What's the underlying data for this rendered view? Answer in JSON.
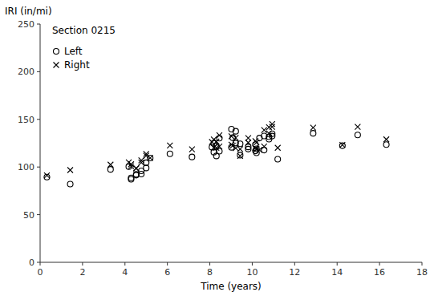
{
  "chart_data": {
    "type": "scatter",
    "title": "Section 0215",
    "x_label": "Time (years)",
    "y_label": "IRI (in/mi)",
    "x": [
      0.32,
      1.42,
      3.32,
      4.18,
      4.29,
      4.29,
      4.53,
      4.53,
      4.77,
      4.77,
      5.0,
      5.0,
      5.19,
      6.12,
      7.16,
      8.1,
      8.19,
      8.19,
      8.31,
      8.31,
      8.45,
      8.45,
      9.02,
      9.02,
      9.08,
      9.22,
      9.22,
      9.43,
      9.43,
      9.81,
      9.81,
      10.15,
      10.15,
      10.2,
      10.2,
      10.34,
      10.56,
      10.56,
      10.79,
      10.79,
      10.94,
      10.94,
      11.2,
      12.87,
      14.25,
      14.97,
      16.32
    ],
    "series": [
      {
        "name": "Left",
        "color": "#000000",
        "marker": "circle",
        "values": [
          89.49,
          82.06,
          97.5,
          100.33,
          88.65,
          87.11,
          92.31,
          91.47,
          95.95,
          92.58,
          104.52,
          98.97,
          109.43,
          113.82,
          110.55,
          120.84,
          124.87,
          115.61,
          121.85,
          111.61,
          130.21,
          116.62,
          139.68,
          120.66,
          130.76,
          137.48,
          125.11,
          124.43,
          112.46,
          121.07,
          118.81,
          123.55,
          116.92,
          119.05,
          114.87,
          130.38,
          132.62,
          117.75,
          131.68,
          129.27,
          134.87,
          132.48,
          108.11,
          135.38,
          122.38,
          133.68,
          123.57
        ]
      },
      {
        "name": "Right",
        "color": "#000000",
        "marker": "x",
        "values": [
          91.18,
          96.79,
          102.49,
          104.93,
          100.68,
          102.91,
          98.73,
          98.46,
          106.98,
          104.74,
          113.7,
          111.82,
          109.57,
          122.53,
          118.56,
          126.26,
          128.81,
          120.32,
          126.69,
          120.03,
          133.37,
          121.57,
          132.27,
          123.42,
          122.38,
          130.59,
          119.93,
          118.87,
          111.73,
          130.39,
          125.62,
          127.13,
          119.78,
          125.72,
          118.72,
          117.88,
          138.83,
          121.49,
          141.8,
          135.2,
          145.04,
          142.24,
          120.17,
          141.37,
          123.3,
          142.11,
          129.01
        ]
      }
    ],
    "xlim": [
      0,
      18
    ],
    "ylim": [
      0,
      250
    ],
    "xticks": [
      0,
      2,
      4,
      6,
      8,
      10,
      12,
      14,
      16,
      18
    ],
    "yticks": [
      0,
      50,
      100,
      150,
      200,
      250
    ],
    "grid": false,
    "legend": "upper left"
  }
}
